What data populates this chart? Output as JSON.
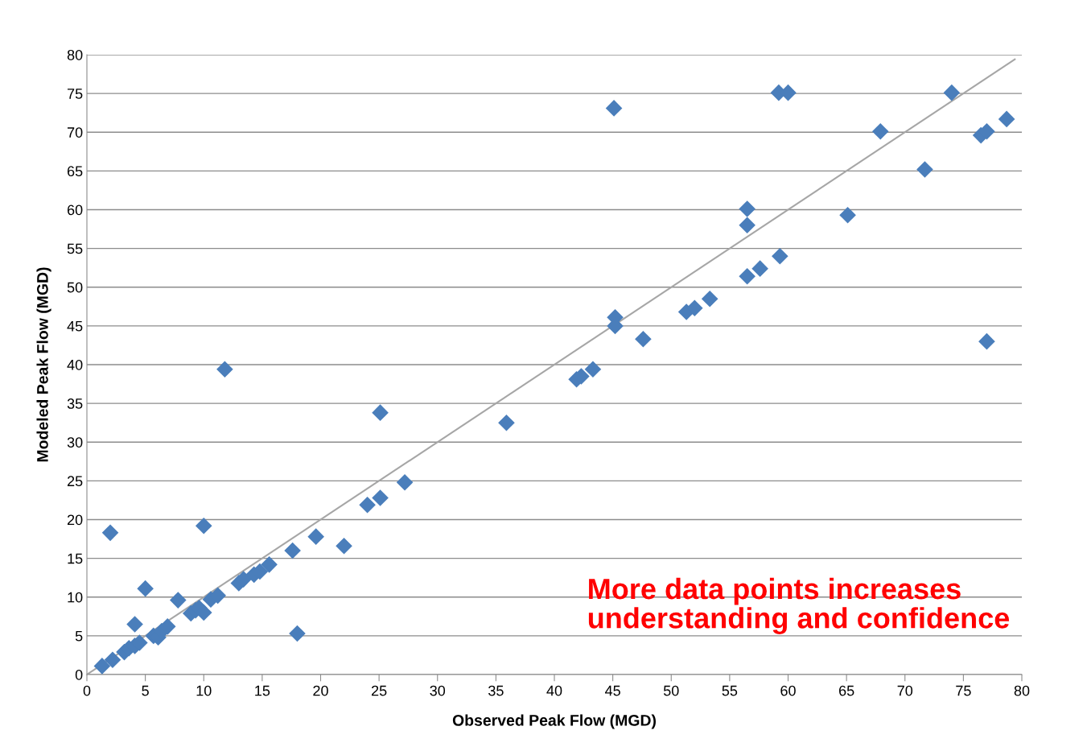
{
  "chart_data": {
    "type": "scatter",
    "xlabel": "Observed Peak Flow (MGD)",
    "ylabel": "Modeled Peak Flow (MGD)",
    "xlim": [
      0,
      80
    ],
    "ylim": [
      0,
      80
    ],
    "xticks": [
      0,
      5,
      10,
      15,
      20,
      25,
      30,
      35,
      40,
      45,
      50,
      55,
      60,
      65,
      70,
      75,
      80
    ],
    "yticks": [
      0,
      5,
      10,
      15,
      20,
      25,
      30,
      35,
      40,
      45,
      50,
      55,
      60,
      65,
      70,
      75,
      80
    ],
    "grid": "y",
    "legend": false,
    "marker": "diamond",
    "series": [
      {
        "type": "line",
        "color": "#a6a6a6",
        "line_style": "solid",
        "marker": "none",
        "x": [
          0,
          79.4
        ],
        "values": [
          0,
          79.4
        ]
      },
      {
        "color": "#4a7ebb",
        "x": [
          1.3,
          2.2,
          2.0,
          3.2,
          3.6,
          4.1,
          4.1,
          4.5,
          5.0,
          5.7,
          6.1,
          6.4,
          6.9,
          7.8,
          8.9,
          9.3,
          9.6,
          10.0,
          10.0,
          10.6,
          11.2,
          11.8,
          13.0,
          13.4,
          14.3,
          14.8,
          15.6,
          17.6,
          18.0,
          19.6,
          22.0,
          24.0,
          25.1,
          25.1,
          27.2,
          35.9,
          41.9,
          42.3,
          43.3,
          45.1,
          45.2,
          45.2,
          47.6,
          51.3,
          52.0,
          53.3,
          56.5,
          56.5,
          56.5,
          57.6,
          59.3,
          59.2,
          60.0,
          65.1,
          67.9,
          71.7,
          74.0,
          76.5,
          77.0,
          77.0,
          78.7
        ],
        "values": [
          1.1,
          1.9,
          18.3,
          2.9,
          3.4,
          3.7,
          6.5,
          4.1,
          11.1,
          5.0,
          4.8,
          5.6,
          6.2,
          9.6,
          7.9,
          8.3,
          8.6,
          8.0,
          19.2,
          9.7,
          10.2,
          39.4,
          11.8,
          12.3,
          12.9,
          13.3,
          14.2,
          16.0,
          5.3,
          17.8,
          16.6,
          21.9,
          22.8,
          33.8,
          24.8,
          32.5,
          38.1,
          38.5,
          39.4,
          73.1,
          46.1,
          45.0,
          43.3,
          46.8,
          47.3,
          48.5,
          60.1,
          58.0,
          51.4,
          52.4,
          54.0,
          75.1,
          75.1,
          59.3,
          70.1,
          65.2,
          75.1,
          69.6,
          70.1,
          43.0,
          71.7
        ]
      }
    ],
    "annotations": [
      "More data points increases\nunderstanding and confidence"
    ]
  }
}
